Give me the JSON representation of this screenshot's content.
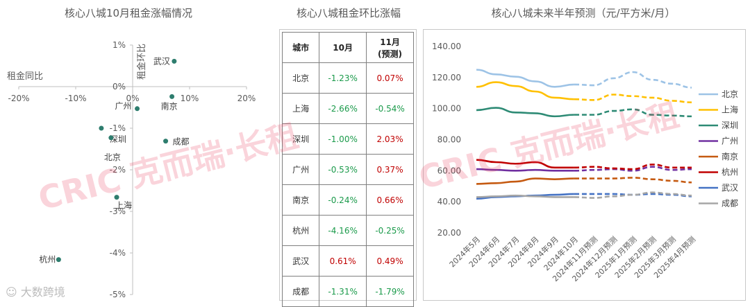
{
  "titles": {
    "scatter": "核心八城10月租金涨幅情况",
    "table": "核心八城租金环比涨幅",
    "line": "核心八城未来半年预测（元/平方米/月）"
  },
  "watermarks": {
    "left": "CRIC 克而瑞·长租",
    "right": "CRIC 克而瑞·长租",
    "logo": "大数跨境"
  },
  "table": {
    "headers": [
      "城市",
      "10月",
      "11月",
      "(预测)"
    ],
    "rows": [
      {
        "city": "北京",
        "oct": "-1.23%",
        "nov": "0.07%"
      },
      {
        "city": "上海",
        "oct": "-2.66%",
        "nov": "-0.54%"
      },
      {
        "city": "深圳",
        "oct": "-1.00%",
        "nov": "2.03%"
      },
      {
        "city": "广州",
        "oct": "-0.53%",
        "nov": "0.37%"
      },
      {
        "city": "南京",
        "oct": "-0.24%",
        "nov": "0.66%"
      },
      {
        "city": "杭州",
        "oct": "-4.16%",
        "nov": "-0.25%"
      },
      {
        "city": "武汉",
        "oct": "0.61%",
        "nov": "0.49%"
      },
      {
        "city": "成都",
        "oct": "-1.31%",
        "nov": "-1.79%"
      }
    ],
    "colors": {
      "positive": "#c00000",
      "negative": "#1a9a4a"
    }
  },
  "chart_data": [
    {
      "type": "scatter",
      "title": "核心八城10月租金涨幅情况",
      "xlabel": "租金同比",
      "ylabel": "租金环比",
      "xlim": [
        -20,
        20
      ],
      "ylim": [
        -5,
        1
      ],
      "xticks": [
        "-20%",
        "-10%",
        "0%",
        "10%",
        "20%"
      ],
      "yticks": [
        "1%",
        "0%",
        "-1%",
        "-2%",
        "-3%",
        "-4%",
        "-5%"
      ],
      "marker_color": "#2e7d6e",
      "points": [
        {
          "name": "武汉",
          "x": 7.3,
          "y": 0.61
        },
        {
          "name": "南京",
          "x": 6.9,
          "y": -0.24
        },
        {
          "name": "广州",
          "x": 0.8,
          "y": -0.53
        },
        {
          "name": "成都",
          "x": 5.8,
          "y": -1.31
        },
        {
          "name": "深圳",
          "x": -5.5,
          "y": -1.0
        },
        {
          "name": "北京",
          "x": -3.8,
          "y": -1.23
        },
        {
          "name": "上海",
          "x": -2.8,
          "y": -2.66
        },
        {
          "name": "杭州",
          "x": -13.0,
          "y": -4.16
        }
      ]
    },
    {
      "type": "line",
      "title": "核心八城未来半年预测（元/平方米/月）",
      "categories": [
        "2024年5月",
        "2024年6月",
        "2024年7月",
        "2024年8月",
        "2024年9月",
        "2024年10月",
        "2024年11月预测",
        "2024年12月预测",
        "2025年1月预测",
        "2025年2月预测",
        "2025年3月预测",
        "2025年4月预测"
      ],
      "forecast_start_index": 5,
      "ylim": [
        20,
        140
      ],
      "yticks": [
        "140.00",
        "120.00",
        "100.00",
        "80.00",
        "60.00",
        "40.00",
        "20.00"
      ],
      "series": [
        {
          "name": "北京",
          "color": "#9dc3e6",
          "values": [
            125,
            122,
            120.5,
            117.5,
            114,
            115.5,
            115,
            119.5,
            123.5,
            118.5,
            116,
            113.5
          ]
        },
        {
          "name": "上海",
          "color": "#ffc000",
          "values": [
            114,
            117,
            114.5,
            111,
            107,
            106,
            105.5,
            109,
            108,
            107,
            105,
            104
          ]
        },
        {
          "name": "深圳",
          "color": "#2e8b75",
          "values": [
            99,
            100.5,
            97.5,
            97,
            95,
            96,
            96,
            98.5,
            99.5,
            96,
            95.5,
            95
          ]
        },
        {
          "name": "广州",
          "color": "#7030a0",
          "values": [
            61,
            60.5,
            60,
            60.5,
            60,
            60,
            60.5,
            61,
            60,
            62.5,
            60.5,
            61
          ]
        },
        {
          "name": "南京",
          "color": "#c55a11",
          "values": [
            51.5,
            52,
            53,
            55,
            54.5,
            55,
            55,
            55,
            55.5,
            54.5,
            53.5,
            52.5
          ]
        },
        {
          "name": "杭州",
          "color": "#c00000",
          "values": [
            67,
            65.5,
            64.5,
            65.5,
            62,
            62,
            62.5,
            61.5,
            61,
            64,
            62,
            62
          ]
        },
        {
          "name": "武汉",
          "color": "#4472c4",
          "values": [
            42,
            43,
            43.5,
            44,
            44.5,
            45,
            45,
            45,
            44.5,
            45,
            44.5,
            43.5
          ]
        },
        {
          "name": "成都",
          "color": "#a6a6a6",
          "values": [
            43,
            43.5,
            44,
            43.5,
            43,
            43,
            42.5,
            43.5,
            44.5,
            46,
            45,
            44
          ]
        }
      ]
    }
  ]
}
